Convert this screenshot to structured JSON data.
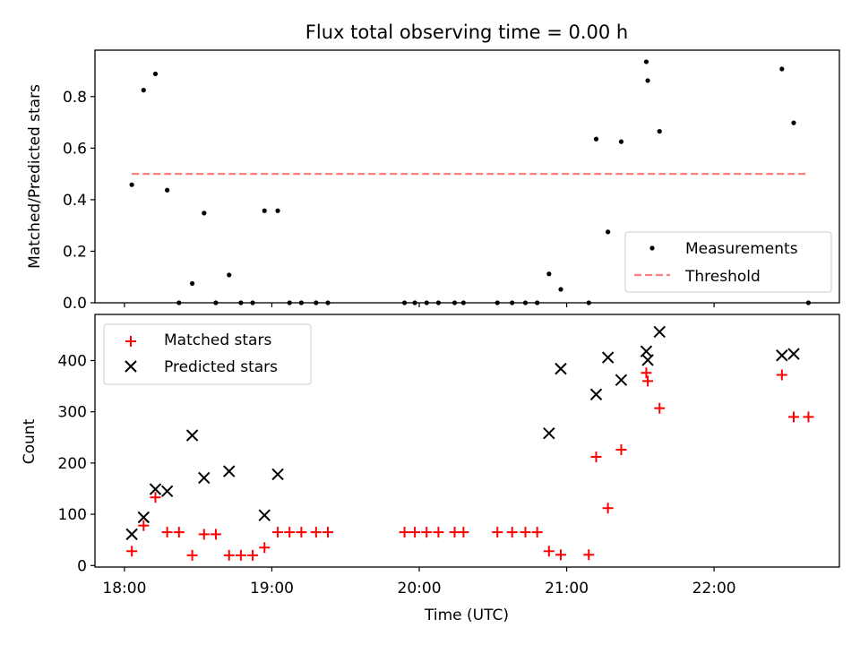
{
  "chart_data": [
    {
      "type": "scatter",
      "title": "Flux total observing time = 0.00 h",
      "ylabel": "Matched/Predicted stars",
      "xlabel": "",
      "xlim_hours": [
        17.8,
        22.85
      ],
      "ylim": [
        0,
        0.98
      ],
      "yticks": [
        0,
        0.2,
        0.4,
        0.6,
        0.8
      ],
      "ytick_labels": [
        "0.0",
        "0.2",
        "0.4",
        "0.6",
        "0.8"
      ],
      "legend_position": "lower-right",
      "grid": false,
      "series": [
        {
          "name": "Measurements",
          "kind": "scatter",
          "marker": "dot",
          "color": "#000000",
          "points": [
            [
              18.05,
              0.458
            ],
            [
              18.13,
              0.825
            ],
            [
              18.21,
              0.888
            ],
            [
              18.29,
              0.437
            ],
            [
              18.37,
              0.0
            ],
            [
              18.46,
              0.075
            ],
            [
              18.54,
              0.348
            ],
            [
              18.62,
              0.0
            ],
            [
              18.71,
              0.108
            ],
            [
              18.79,
              0.0
            ],
            [
              18.87,
              0.0
            ],
            [
              18.95,
              0.357
            ],
            [
              19.04,
              0.357
            ],
            [
              19.12,
              0.0
            ],
            [
              19.2,
              0.0
            ],
            [
              19.3,
              0.0
            ],
            [
              19.38,
              0.0
            ],
            [
              19.9,
              0.0
            ],
            [
              19.97,
              0.0
            ],
            [
              20.05,
              0.0
            ],
            [
              20.13,
              0.0
            ],
            [
              20.24,
              0.0
            ],
            [
              20.3,
              0.0
            ],
            [
              20.53,
              0.0
            ],
            [
              20.63,
              0.0
            ],
            [
              20.72,
              0.0
            ],
            [
              20.8,
              0.0
            ],
            [
              20.88,
              0.112
            ],
            [
              20.96,
              0.052
            ],
            [
              21.15,
              0.0
            ],
            [
              21.2,
              0.635
            ],
            [
              21.28,
              0.275
            ],
            [
              21.37,
              0.625
            ],
            [
              21.54,
              0.935
            ],
            [
              21.55,
              0.862
            ],
            [
              21.63,
              0.665
            ],
            [
              22.46,
              0.907
            ],
            [
              22.54,
              0.698
            ],
            [
              22.64,
              0.0
            ]
          ]
        },
        {
          "name": "Threshold",
          "kind": "line",
          "style": "dashed",
          "color": "#ff7f7f",
          "points": [
            [
              18.05,
              0.5
            ],
            [
              22.64,
              0.5
            ]
          ]
        }
      ]
    },
    {
      "type": "scatter",
      "title": "",
      "xlabel": "Time (UTC)",
      "ylabel": "Count",
      "xlim_hours": [
        17.8,
        22.85
      ],
      "ylim": [
        -3,
        490
      ],
      "yticks": [
        0,
        100,
        200,
        300,
        400
      ],
      "ytick_labels": [
        "0",
        "100",
        "200",
        "300",
        "400"
      ],
      "xticks_hours": [
        18,
        19,
        20,
        21,
        22
      ],
      "xtick_labels": [
        "18:00",
        "19:00",
        "20:00",
        "21:00",
        "22:00"
      ],
      "legend_position": "upper-left",
      "grid": false,
      "series": [
        {
          "name": "Matched stars",
          "kind": "scatter",
          "marker": "plus",
          "color": "#ff0000",
          "points": [
            [
              18.05,
              28
            ],
            [
              18.13,
              78
            ],
            [
              18.21,
              133
            ],
            [
              18.29,
              65
            ],
            [
              18.37,
              65
            ],
            [
              18.46,
              20
            ],
            [
              18.54,
              61
            ],
            [
              18.62,
              61
            ],
            [
              18.71,
              20
            ],
            [
              18.79,
              20
            ],
            [
              18.87,
              20
            ],
            [
              18.95,
              35
            ],
            [
              19.04,
              65
            ],
            [
              19.12,
              65
            ],
            [
              19.2,
              65
            ],
            [
              19.3,
              65
            ],
            [
              19.38,
              65
            ],
            [
              19.9,
              65
            ],
            [
              19.97,
              65
            ],
            [
              20.05,
              65
            ],
            [
              20.13,
              65
            ],
            [
              20.24,
              65
            ],
            [
              20.3,
              65
            ],
            [
              20.53,
              65
            ],
            [
              20.63,
              65
            ],
            [
              20.72,
              65
            ],
            [
              20.8,
              65
            ],
            [
              20.88,
              28
            ],
            [
              20.96,
              21
            ],
            [
              21.15,
              21
            ],
            [
              21.2,
              212
            ],
            [
              21.28,
              112
            ],
            [
              21.37,
              226
            ],
            [
              21.54,
              376
            ],
            [
              21.55,
              360
            ],
            [
              21.63,
              307
            ],
            [
              22.46,
              372
            ],
            [
              22.54,
              290
            ],
            [
              22.64,
              290
            ]
          ]
        },
        {
          "name": "Predicted stars",
          "kind": "scatter",
          "marker": "x",
          "color": "#000000",
          "points": [
            [
              18.05,
              61
            ],
            [
              18.13,
              94
            ],
            [
              18.21,
              149
            ],
            [
              18.29,
              145
            ],
            [
              18.46,
              254
            ],
            [
              18.54,
              171
            ],
            [
              18.71,
              184
            ],
            [
              18.95,
              98
            ],
            [
              19.04,
              178
            ],
            [
              20.88,
              258
            ],
            [
              20.96,
              384
            ],
            [
              21.2,
              334
            ],
            [
              21.28,
              406
            ],
            [
              21.37,
              362
            ],
            [
              21.54,
              418
            ],
            [
              21.55,
              401
            ],
            [
              21.63,
              456
            ],
            [
              22.46,
              410
            ],
            [
              22.54,
              413
            ]
          ]
        }
      ]
    }
  ]
}
